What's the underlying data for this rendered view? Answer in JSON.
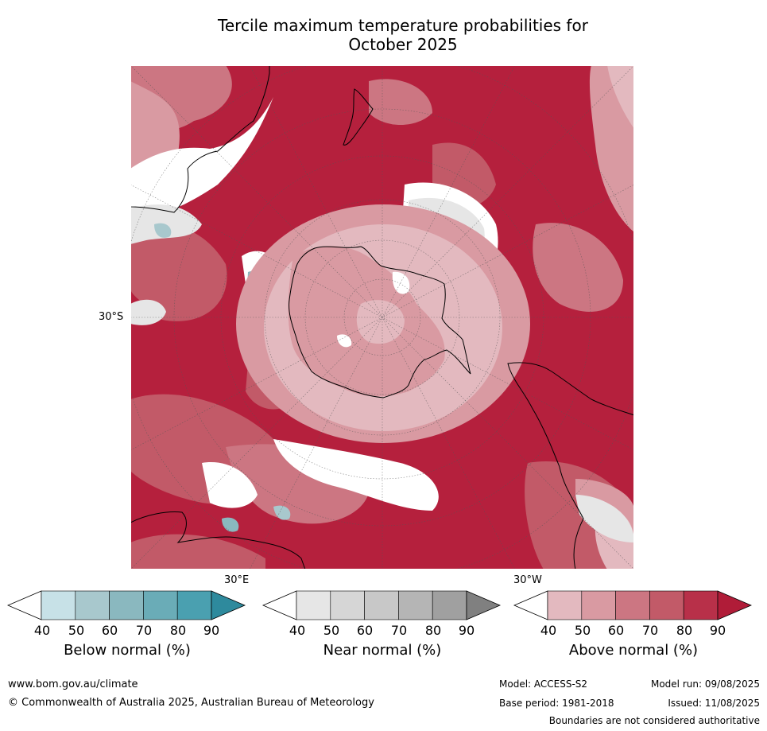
{
  "title": {
    "line1": "Tercile maximum temperature probabilities for",
    "line2": "October 2025"
  },
  "map": {
    "projection": "south-polar-stereographic",
    "labels": {
      "lat_30s": "30°S",
      "lon_30e": "30°E",
      "lon_30w": "30°W"
    }
  },
  "colorbars": [
    {
      "name": "Below normal (%)",
      "ticks": [
        "40",
        "50",
        "60",
        "70",
        "80",
        "90"
      ],
      "colors": [
        "#ffffff",
        "#c7e1e7",
        "#a8c8cd",
        "#8ab8bf",
        "#6aacb7",
        "#4aa0b0",
        "#2e8a9d"
      ]
    },
    {
      "name": "Near normal (%)",
      "ticks": [
        "40",
        "50",
        "60",
        "70",
        "80",
        "90"
      ],
      "colors": [
        "#ffffff",
        "#e6e6e6",
        "#d6d6d6",
        "#c8c8c8",
        "#b5b5b5",
        "#a0a0a0",
        "#808080"
      ]
    },
    {
      "name": "Above normal (%)",
      "ticks": [
        "40",
        "50",
        "60",
        "70",
        "80",
        "90"
      ],
      "colors": [
        "#ffffff",
        "#e3b9bf",
        "#d99aa2",
        "#cc7682",
        "#c25a68",
        "#b83049",
        "#b01c38"
      ]
    }
  ],
  "footer": {
    "website": "www.bom.gov.au/climate",
    "copyright": "© Commonwealth of Australia 2025, Australian Bureau of Meteorology",
    "model": "Model: ACCESS-S2",
    "base_period": "Base period: 1981-2018",
    "model_run": "Model run: 09/08/2025",
    "issued": "Issued: 11/08/2025",
    "disclaimer": "Boundaries are not considered authoritative"
  }
}
